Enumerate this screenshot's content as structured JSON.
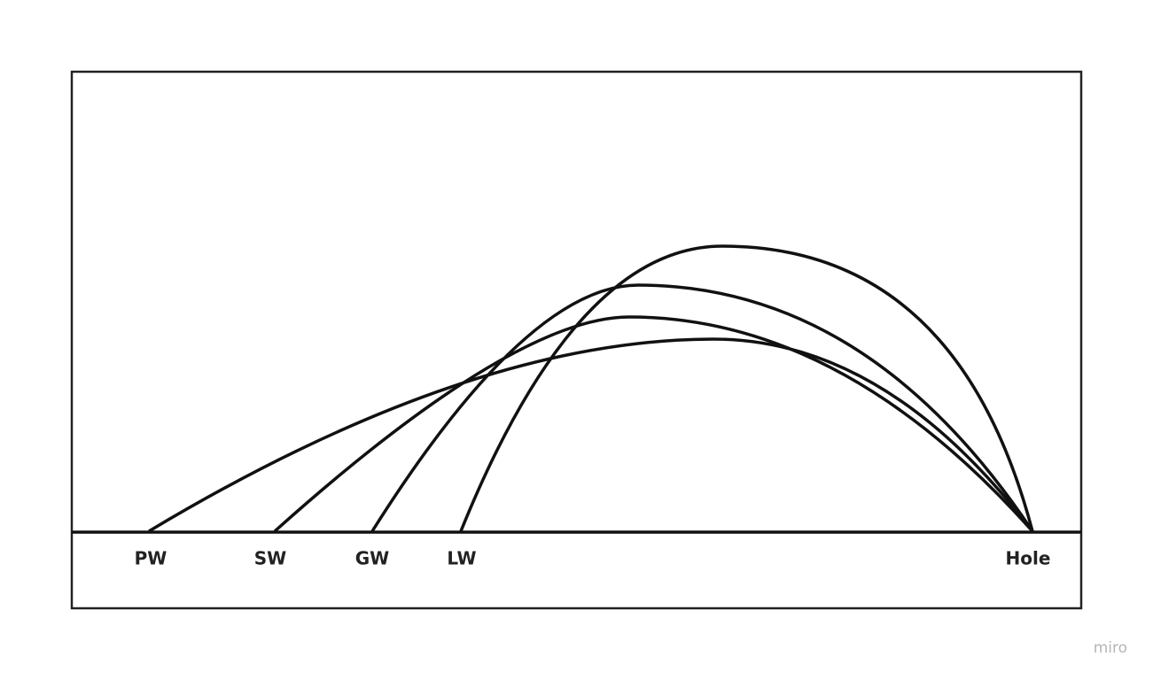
{
  "labels": [
    "PW",
    "SW",
    "GW",
    "LW",
    "Hole"
  ],
  "watermark": "miro"
}
